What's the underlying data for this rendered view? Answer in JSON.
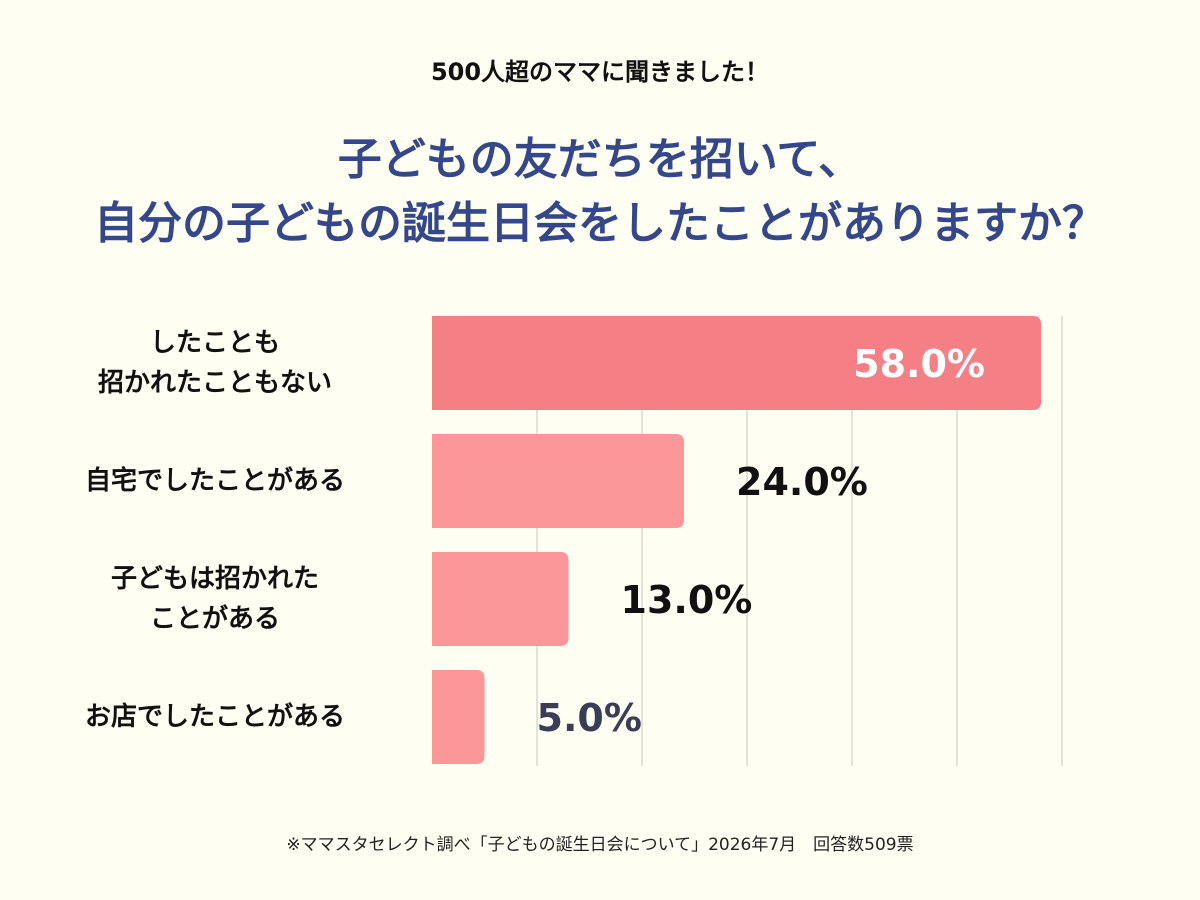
{
  "header": {
    "subtitle": "500人超のママに聞きました！",
    "title_line1": "子どもの友だちを招いて、",
    "title_line2": "自分の子どもの誕生日会をしたことがありますか？"
  },
  "chart_data": {
    "type": "bar",
    "orientation": "horizontal",
    "categories": [
      [
        "したことも",
        "招かれたこともない"
      ],
      [
        "自宅でしたことがある"
      ],
      [
        "子どもは招かれた",
        "ことがある"
      ],
      [
        "お店でしたことがある"
      ]
    ],
    "values": [
      58.0,
      24.0,
      13.0,
      5.0
    ],
    "value_labels": [
      "58.0%",
      "24.0%",
      "13.0%",
      "5.0%"
    ],
    "xlim": [
      0,
      60
    ],
    "grid": true,
    "colors": {
      "highlight_bar": "#f47f85",
      "bar": "#fb9699",
      "highlight_label": "#ffffff",
      "label": "#111111",
      "small_label": "#3a3d55",
      "grid": "#d8d8d0"
    }
  },
  "footer": {
    "note": "※ママスタセレクト調べ「子どもの誕生日会について」2026年7月　回答数509票"
  }
}
